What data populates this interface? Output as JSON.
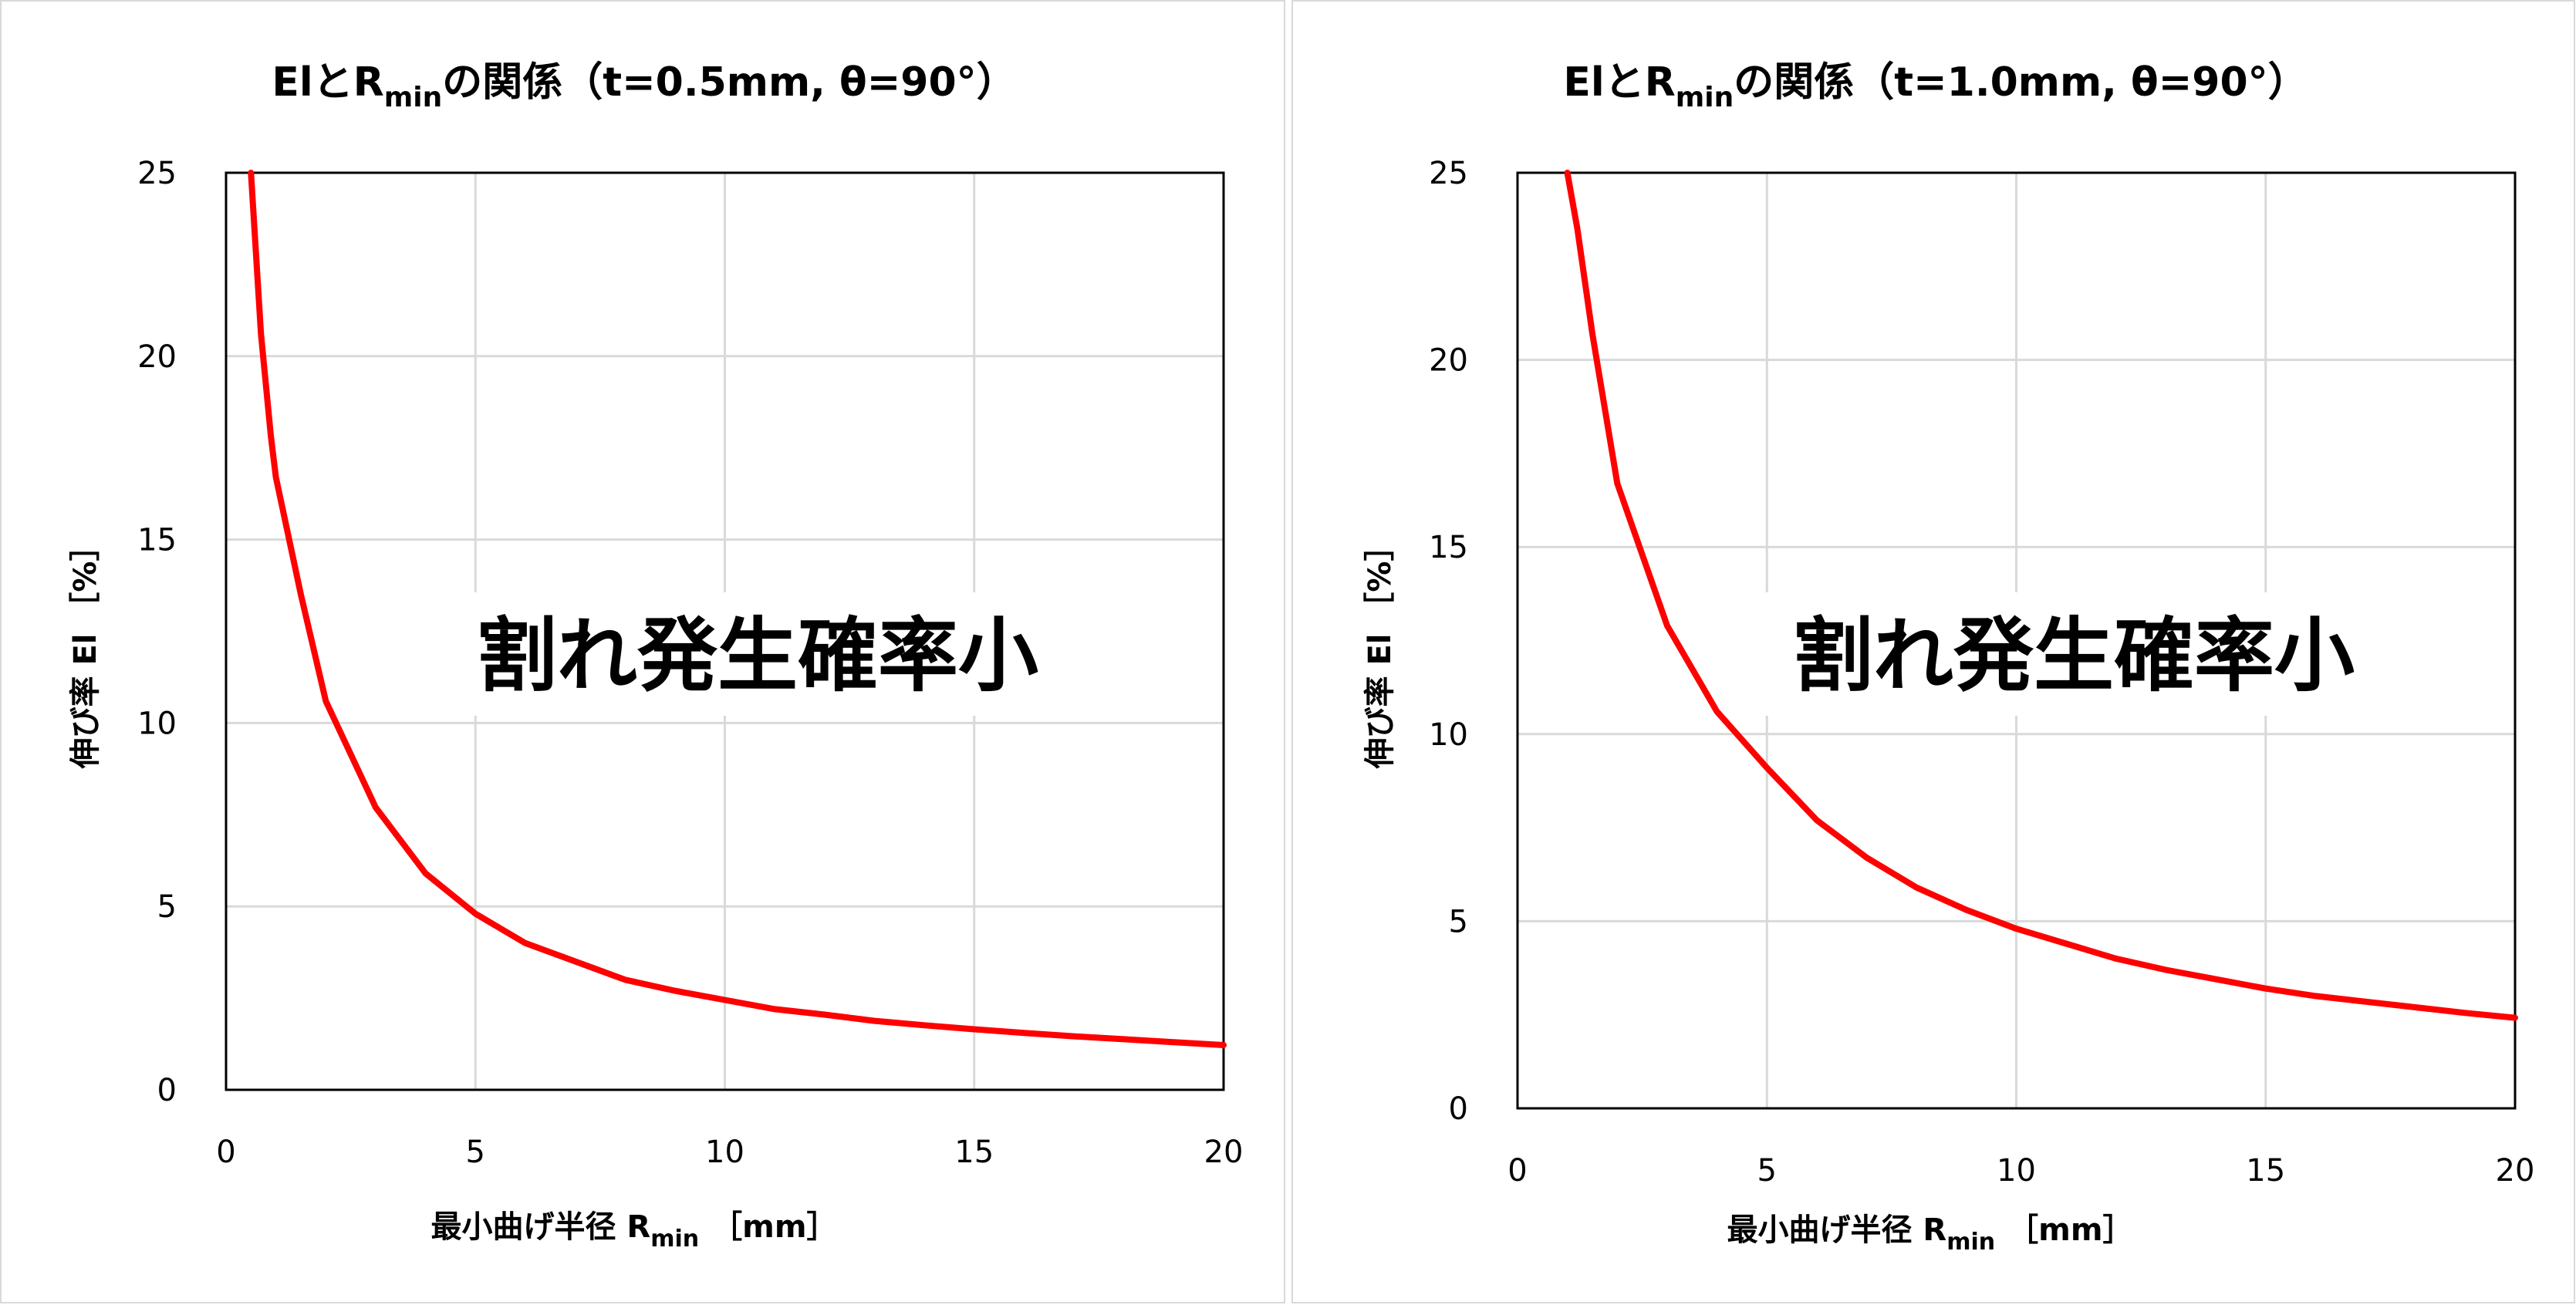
{
  "chart_data": [
    {
      "type": "line",
      "title": {
        "main": "ElとR",
        "sub": "min",
        "tail": "の関係（t=0.5mm, θ=90°）"
      },
      "xlabel": {
        "main": "最小曲げ半径 R",
        "sub": "min",
        "tail": "［mm］"
      },
      "ylabel": "伸び率 El ［%］",
      "xlim": [
        0,
        20
      ],
      "ylim": [
        0,
        25
      ],
      "xticks": [
        0,
        5,
        10,
        15,
        20
      ],
      "yticks": [
        0,
        5,
        10,
        15,
        20,
        25
      ],
      "grid": true,
      "annotation": "割れ発生確率小",
      "series": [
        {
          "color": "#ff0000",
          "x": [
            0.5,
            0.7,
            0.9,
            1,
            1.5,
            2,
            3,
            4,
            5,
            6,
            7,
            8,
            9,
            10,
            11,
            12,
            13,
            14,
            15,
            16,
            17,
            18,
            19,
            20
          ],
          "y": [
            25,
            20.6,
            17.8,
            16.7,
            13.5,
            10.6,
            7.7,
            5.9,
            4.8,
            4.0,
            3.5,
            3.0,
            2.7,
            2.45,
            2.2,
            2.05,
            1.88,
            1.76,
            1.65,
            1.55,
            1.46,
            1.38,
            1.3,
            1.22
          ]
        }
      ]
    },
    {
      "type": "line",
      "title": {
        "main": "ElとR",
        "sub": "min",
        "tail": "の関係（t=1.0mm, θ=90°）"
      },
      "xlabel": {
        "main": "最小曲げ半径 R",
        "sub": "min",
        "tail": "［mm］"
      },
      "ylabel": "伸び率 El ［%］",
      "xlim": [
        0,
        20
      ],
      "ylim": [
        0,
        25
      ],
      "xticks": [
        0,
        5,
        10,
        15,
        20
      ],
      "yticks": [
        0,
        5,
        10,
        15,
        20,
        25
      ],
      "grid": true,
      "annotation": "割れ発生確率小",
      "series": [
        {
          "color": "#ff0000",
          "x": [
            1,
            1.2,
            1.5,
            2,
            3,
            4,
            5,
            6,
            7,
            8,
            9,
            10,
            11,
            12,
            13,
            14,
            15,
            16,
            17,
            18,
            19,
            20
          ],
          "y": [
            25,
            23.5,
            20.7,
            16.7,
            12.9,
            10.6,
            9.1,
            7.7,
            6.7,
            5.9,
            5.3,
            4.8,
            4.4,
            4.0,
            3.7,
            3.45,
            3.2,
            3.0,
            2.85,
            2.7,
            2.55,
            2.42
          ]
        }
      ]
    }
  ]
}
